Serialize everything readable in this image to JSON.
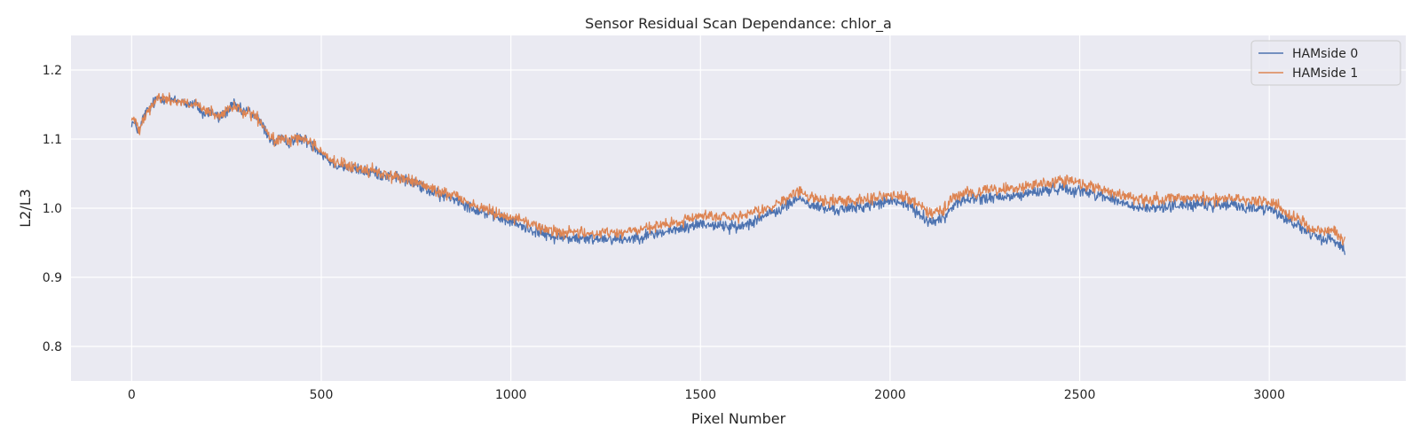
{
  "chart_data": {
    "type": "line",
    "title": "Sensor Residual Scan Dependance: chlor_a",
    "xlabel": "Pixel Number",
    "ylabel": "L2/L3",
    "xlim": [
      -160,
      3360
    ],
    "ylim": [
      0.75,
      1.25
    ],
    "xticks": [
      0,
      500,
      1000,
      1500,
      2000,
      2500,
      3000
    ],
    "yticks": [
      0.8,
      0.9,
      1.0,
      1.1,
      1.2
    ],
    "xtick_labels": [
      "0",
      "500",
      "1000",
      "1500",
      "2000",
      "2500",
      "3000"
    ],
    "ytick_labels": [
      "0.8",
      "0.9",
      "1.0",
      "1.1",
      "1.2"
    ],
    "grid": true,
    "legend_position": "top-right",
    "background": "#eaeaf2",
    "series": [
      {
        "name": "HAMside 0",
        "color": "#4c72b0",
        "noise": 0.006,
        "x": [
          0,
          10,
          20,
          30,
          40,
          55,
          70,
          90,
          110,
          130,
          150,
          170,
          190,
          210,
          230,
          250,
          270,
          290,
          310,
          330,
          345,
          360,
          375,
          390,
          410,
          430,
          450,
          470,
          490,
          510,
          530,
          560,
          600,
          650,
          700,
          750,
          800,
          850,
          900,
          950,
          1000,
          1050,
          1100,
          1150,
          1200,
          1250,
          1300,
          1350,
          1400,
          1450,
          1500,
          1550,
          1600,
          1650,
          1700,
          1730,
          1760,
          1790,
          1820,
          1850,
          1900,
          1950,
          2000,
          2050,
          2080,
          2110,
          2140,
          2160,
          2180,
          2200,
          2250,
          2300,
          2350,
          2400,
          2450,
          2500,
          2550,
          2600,
          2650,
          2700,
          2750,
          2800,
          2850,
          2900,
          2950,
          3000,
          3030,
          3060,
          3090,
          3110,
          3130,
          3150,
          3170,
          3190,
          3200
        ],
        "y": [
          1.125,
          1.12,
          1.11,
          1.13,
          1.14,
          1.15,
          1.16,
          1.16,
          1.155,
          1.155,
          1.15,
          1.15,
          1.135,
          1.14,
          1.13,
          1.14,
          1.15,
          1.14,
          1.14,
          1.13,
          1.12,
          1.105,
          1.095,
          1.1,
          1.095,
          1.1,
          1.1,
          1.095,
          1.085,
          1.075,
          1.065,
          1.06,
          1.055,
          1.05,
          1.045,
          1.035,
          1.02,
          1.015,
          1.0,
          0.99,
          0.98,
          0.97,
          0.96,
          0.957,
          0.955,
          0.957,
          0.955,
          0.96,
          0.965,
          0.97,
          0.978,
          0.975,
          0.972,
          0.985,
          0.995,
          1.005,
          1.015,
          1.005,
          1.0,
          0.998,
          1.0,
          1.005,
          1.01,
          1.005,
          0.99,
          0.98,
          0.985,
          1.0,
          1.01,
          1.012,
          1.015,
          1.015,
          1.02,
          1.025,
          1.03,
          1.025,
          1.02,
          1.01,
          1.0,
          1.0,
          1.005,
          1.005,
          1.003,
          1.005,
          1.0,
          1.0,
          0.99,
          0.98,
          0.97,
          0.96,
          0.958,
          0.955,
          0.955,
          0.945,
          0.938
        ]
      },
      {
        "name": "HAMside 1",
        "color": "#dd8452",
        "noise": 0.006,
        "x": [
          0,
          10,
          20,
          30,
          40,
          55,
          70,
          90,
          110,
          130,
          150,
          170,
          190,
          210,
          230,
          250,
          270,
          290,
          310,
          330,
          345,
          360,
          375,
          390,
          410,
          430,
          450,
          470,
          490,
          510,
          530,
          560,
          600,
          650,
          700,
          750,
          800,
          850,
          900,
          950,
          1000,
          1050,
          1100,
          1150,
          1200,
          1250,
          1300,
          1350,
          1400,
          1450,
          1500,
          1550,
          1600,
          1650,
          1700,
          1730,
          1760,
          1790,
          1820,
          1850,
          1900,
          1950,
          2000,
          2050,
          2080,
          2110,
          2140,
          2160,
          2180,
          2200,
          2250,
          2300,
          2350,
          2400,
          2450,
          2500,
          2550,
          2600,
          2650,
          2700,
          2750,
          2800,
          2850,
          2900,
          2950,
          3000,
          3030,
          3060,
          3090,
          3110,
          3130,
          3150,
          3170,
          3190,
          3200
        ],
        "y": [
          1.13,
          1.125,
          1.115,
          1.13,
          1.14,
          1.15,
          1.16,
          1.158,
          1.155,
          1.155,
          1.15,
          1.15,
          1.14,
          1.14,
          1.13,
          1.14,
          1.148,
          1.14,
          1.138,
          1.13,
          1.12,
          1.107,
          1.097,
          1.1,
          1.098,
          1.102,
          1.1,
          1.097,
          1.088,
          1.078,
          1.068,
          1.062,
          1.058,
          1.052,
          1.045,
          1.038,
          1.025,
          1.02,
          1.005,
          0.995,
          0.988,
          0.978,
          0.968,
          0.965,
          0.963,
          0.965,
          0.965,
          0.97,
          0.975,
          0.98,
          0.99,
          0.988,
          0.985,
          0.995,
          1.005,
          1.015,
          1.025,
          1.015,
          1.012,
          1.01,
          1.012,
          1.015,
          1.018,
          1.015,
          1.003,
          0.995,
          0.995,
          1.01,
          1.018,
          1.022,
          1.025,
          1.028,
          1.03,
          1.035,
          1.04,
          1.035,
          1.03,
          1.02,
          1.012,
          1.012,
          1.015,
          1.015,
          1.013,
          1.015,
          1.012,
          1.01,
          1.0,
          0.99,
          0.98,
          0.97,
          0.968,
          0.965,
          0.97,
          0.955,
          0.952
        ]
      }
    ]
  }
}
